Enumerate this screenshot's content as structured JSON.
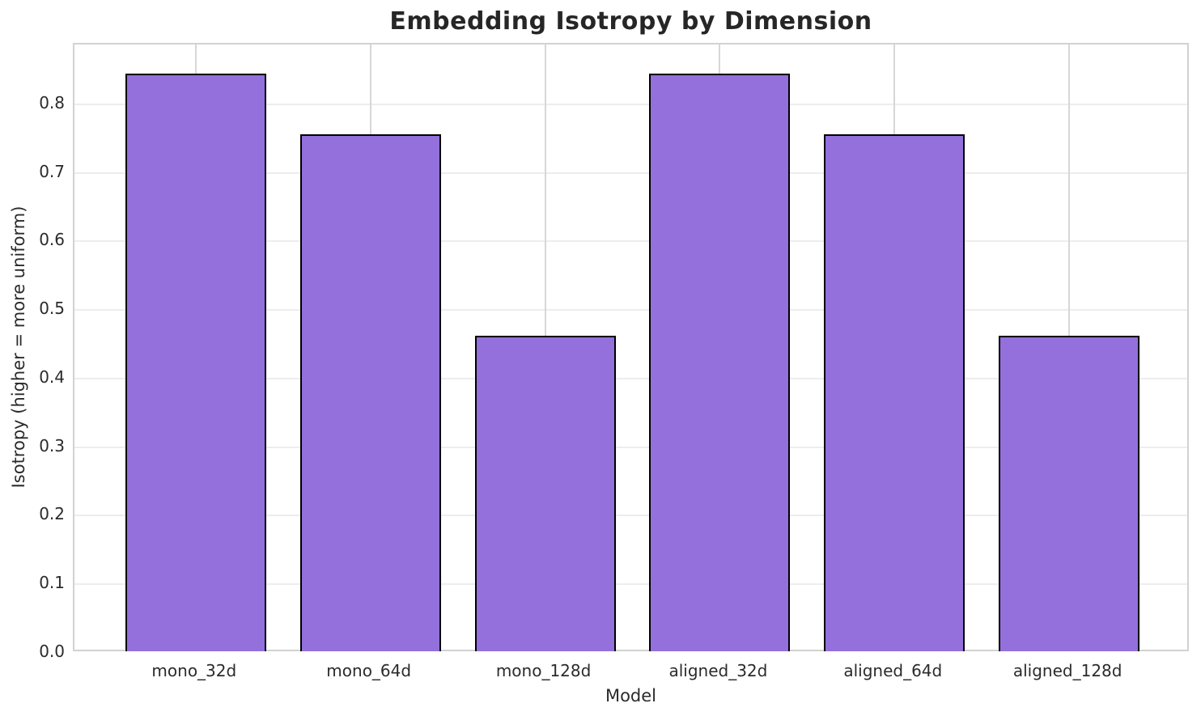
{
  "chart_data": {
    "type": "bar",
    "title": "Embedding Isotropy by Dimension",
    "xlabel": "Model",
    "ylabel": "Isotropy (higher = more uniform)",
    "categories": [
      "mono_32d",
      "mono_64d",
      "mono_128d",
      "aligned_32d",
      "aligned_64d",
      "aligned_128d"
    ],
    "values": [
      0.845,
      0.756,
      0.462,
      0.845,
      0.756,
      0.462
    ],
    "yticks": [
      0.0,
      0.1,
      0.2,
      0.3,
      0.4,
      0.5,
      0.6,
      0.7,
      0.8
    ],
    "ylim": [
      0,
      0.887
    ],
    "grid": true,
    "legend": "none",
    "bar_color": "#9370DB",
    "bar_edge_color": "#000000",
    "grid_color_horizontal": "#ededed",
    "grid_color_vertical": "#d7d7d7",
    "spine_color": "#d2d2d2",
    "text_color": "#2b2b2b",
    "title_color": "#262626"
  }
}
